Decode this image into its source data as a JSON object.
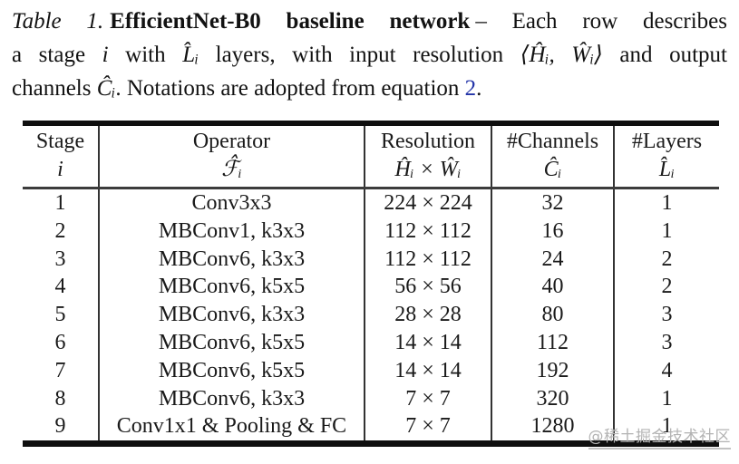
{
  "caption": {
    "label": "Table 1.",
    "title": "EfficientNet-B0 baseline network",
    "after_title": "– Each row describes",
    "line2_parts": {
      "p0": "a stage ",
      "p1": "i",
      "p2": " with ",
      "p3": "L̂ᵢ",
      "p4": " layers, with input resolution ",
      "p5": "⟨Ĥᵢ, Ŵᵢ⟩",
      "p6": " and output"
    },
    "line3_parts": {
      "p0": "channels ",
      "p1": "Ĉᵢ",
      "p2": ". Notations are adopted from equation ",
      "link": "2",
      "p3": "."
    }
  },
  "table": {
    "columns": [
      {
        "line1": "Stage",
        "line2": "i"
      },
      {
        "line1": "Operator",
        "line2": "ℱ̂ᵢ"
      },
      {
        "line1": "Resolution",
        "line2": "Ĥᵢ × Ŵᵢ"
      },
      {
        "line1": "#Channels",
        "line2": "Ĉᵢ"
      },
      {
        "line1": "#Layers",
        "line2": "L̂ᵢ"
      }
    ],
    "rows": [
      [
        "1",
        "Conv3x3",
        "224 × 224",
        "32",
        "1"
      ],
      [
        "2",
        "MBConv1, k3x3",
        "112 × 112",
        "16",
        "1"
      ],
      [
        "3",
        "MBConv6, k3x3",
        "112 × 112",
        "24",
        "2"
      ],
      [
        "4",
        "MBConv6, k5x5",
        "56 × 56",
        "40",
        "2"
      ],
      [
        "5",
        "MBConv6, k3x3",
        "28 × 28",
        "80",
        "3"
      ],
      [
        "6",
        "MBConv6, k5x5",
        "14 × 14",
        "112",
        "3"
      ],
      [
        "7",
        "MBConv6, k5x5",
        "14 × 14",
        "192",
        "4"
      ],
      [
        "8",
        "MBConv6, k3x3",
        "7 × 7",
        "320",
        "1"
      ],
      [
        "9",
        "Conv1x1 & Pooling & FC",
        "7 × 7",
        "1280",
        "1"
      ]
    ]
  },
  "watermark": {
    "text": "@稀土掘金技术社区"
  },
  "colors": {
    "link": "#2233a8",
    "text": "#1a1a1a",
    "thick_rule": "#0f0f0f",
    "mid_rule": "#3c3c3c",
    "watermark": "#b3b3b3"
  }
}
